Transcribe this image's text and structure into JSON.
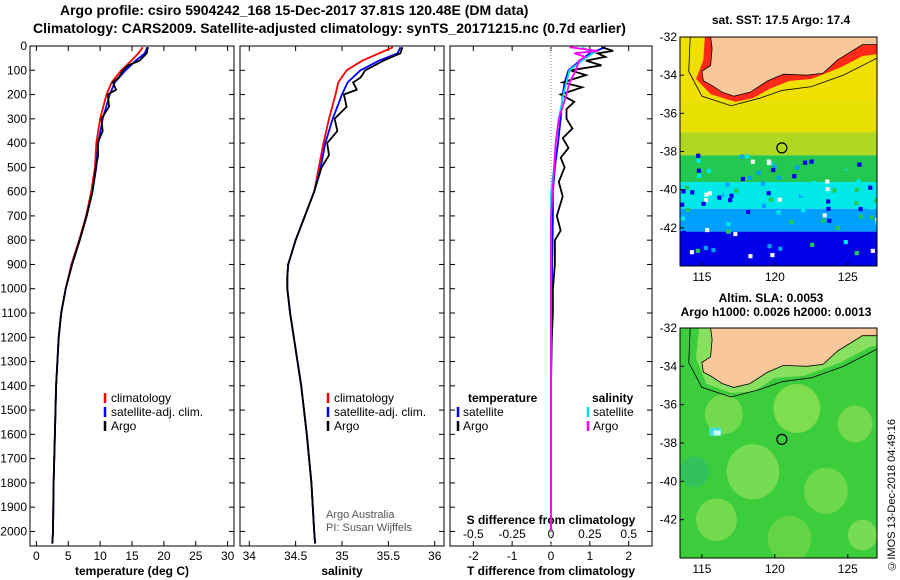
{
  "header": {
    "line1": "Argo profile: csiro 5904242_168 15-Dec-2017 37.81S 120.48E (DM data)",
    "line2": "Climatology: CARS2009. Satellite-adjusted climatology: synTS_20171215.nc (0.7d earlier)"
  },
  "colors": {
    "climatology": "#ff0000",
    "satellite": "#0000ff",
    "argo": "#000000",
    "sat_salinity": "#00e5e5",
    "argo_salinity": "#ff00ff"
  },
  "chart_data": [
    {
      "type": "line",
      "xlabel": "temperature (deg C)",
      "ylabel": "",
      "xlim": [
        -1,
        31
      ],
      "ylim": [
        2060,
        0
      ],
      "xticks": [
        "0",
        "5",
        "10",
        "15",
        "20",
        "25",
        "30"
      ],
      "yticks": [
        "0",
        "100",
        "200",
        "300",
        "400",
        "500",
        "600",
        "700",
        "800",
        "900",
        "1000",
        "1100",
        "1200",
        "1300",
        "1400",
        "1500",
        "1600",
        "1700",
        "1800",
        "1900",
        "2000"
      ],
      "legend": [
        "climatology",
        "satellite-adj. clim.",
        "Argo"
      ],
      "series": [
        {
          "name": "climatology",
          "color": "#ff0000",
          "depth": [
            5,
            30,
            60,
            100,
            150,
            200,
            300,
            400,
            500,
            600,
            700,
            800,
            900,
            1000,
            1100,
            1200,
            1400,
            1600,
            1800,
            2000,
            2050
          ],
          "values": [
            16.7,
            16.0,
            14.9,
            13.3,
            11.8,
            11.0,
            10.0,
            9.4,
            9.2,
            8.6,
            7.8,
            6.7,
            5.5,
            4.6,
            3.9,
            3.5,
            3.1,
            2.9,
            2.7,
            2.6,
            2.5
          ]
        },
        {
          "name": "satellite-adj. clim.",
          "color": "#0000ff",
          "depth": [
            5,
            30,
            60,
            100,
            150,
            200,
            300,
            400,
            500,
            600,
            700,
            800,
            900,
            1000,
            1100,
            1200,
            1400,
            1600,
            1800,
            2000,
            2050
          ],
          "values": [
            17.4,
            17.0,
            15.6,
            14.0,
            12.3,
            11.5,
            10.4,
            9.7,
            9.4,
            8.8,
            7.9,
            6.8,
            5.6,
            4.6,
            3.9,
            3.5,
            3.1,
            2.9,
            2.7,
            2.6,
            2.5
          ]
        },
        {
          "name": "Argo",
          "color": "#000000",
          "depth": [
            5,
            30,
            60,
            80,
            100,
            130,
            150,
            180,
            200,
            250,
            300,
            350,
            400,
            450,
            500,
            600,
            700,
            800,
            900,
            1000,
            1100,
            1200,
            1400,
            1600,
            1800,
            2000,
            2050
          ],
          "values": [
            17.5,
            17.3,
            16.2,
            14.4,
            13.6,
            12.9,
            12.0,
            12.5,
            11.2,
            11.4,
            10.2,
            10.4,
            9.6,
            9.7,
            9.3,
            8.8,
            7.9,
            6.8,
            5.6,
            4.6,
            3.9,
            3.5,
            3.1,
            2.9,
            2.7,
            2.6,
            2.5
          ]
        }
      ]
    },
    {
      "type": "line",
      "xlabel": "salinity",
      "xlim": [
        33.9,
        36.1
      ],
      "ylim": [
        2060,
        0
      ],
      "xticks": [
        "34",
        "34.5",
        "35",
        "35.5",
        "36"
      ],
      "legend": [
        "climatology",
        "satellite-adj. clim.",
        "Argo"
      ],
      "annotations": [
        "Argo Australia",
        "PI: Susan Wijffels"
      ],
      "series": [
        {
          "name": "climatology",
          "color": "#ff0000",
          "depth": [
            5,
            30,
            60,
            100,
            150,
            200,
            300,
            400,
            500,
            600,
            700,
            800,
            900,
            950,
            1000,
            1100,
            1200,
            1300,
            1400,
            1600,
            1800,
            2000,
            2050
          ],
          "values": [
            35.55,
            35.4,
            35.22,
            35.05,
            34.96,
            34.93,
            34.86,
            34.8,
            34.75,
            34.7,
            34.6,
            34.5,
            34.42,
            34.41,
            34.41,
            34.44,
            34.48,
            34.52,
            34.56,
            34.62,
            34.67,
            34.7,
            34.71
          ]
        },
        {
          "name": "satellite-adj. clim.",
          "color": "#0000ff",
          "depth": [
            5,
            30,
            60,
            100,
            150,
            200,
            300,
            400,
            500,
            600,
            700,
            800,
            900,
            950,
            1000,
            1100,
            1200,
            1300,
            1400,
            1600,
            1800,
            2000,
            2050
          ],
          "values": [
            35.63,
            35.6,
            35.4,
            35.2,
            35.06,
            35.0,
            34.9,
            34.82,
            34.77,
            34.7,
            34.6,
            34.5,
            34.42,
            34.41,
            34.41,
            34.44,
            34.48,
            34.52,
            34.56,
            34.62,
            34.67,
            34.7,
            34.71
          ]
        },
        {
          "name": "Argo",
          "color": "#000000",
          "depth": [
            5,
            30,
            60,
            100,
            130,
            150,
            180,
            200,
            250,
            300,
            350,
            400,
            450,
            500,
            600,
            700,
            800,
            900,
            950,
            1000,
            1100,
            1200,
            1300,
            1400,
            1600,
            1800,
            2000,
            2050
          ],
          "values": [
            35.65,
            35.63,
            35.45,
            35.25,
            35.2,
            35.12,
            35.16,
            35.02,
            35.05,
            34.92,
            34.95,
            34.84,
            34.86,
            34.78,
            34.7,
            34.6,
            34.5,
            34.42,
            34.41,
            34.41,
            34.44,
            34.48,
            34.52,
            34.56,
            34.62,
            34.67,
            34.7,
            34.71
          ]
        }
      ]
    },
    {
      "type": "line",
      "xlabel": "T difference from climatology",
      "x2label": "S difference from climatology",
      "xlim": [
        -2.6,
        2.6
      ],
      "ylim": [
        2060,
        0
      ],
      "xticks": [
        "-2",
        "-1",
        "0",
        "1",
        "2"
      ],
      "x2ticks": [
        "-0.5",
        "-0.25",
        "0",
        "0.25",
        "0.5"
      ],
      "legend_left_title": "temperature",
      "legend_right_title": "salinity",
      "legend": [
        "satellite",
        "Argo",
        "satellite",
        "Argo"
      ],
      "series": [
        {
          "name": "satellite",
          "group": "temperature",
          "color": "#0000ff",
          "depth": [
            5,
            30,
            60,
            100,
            150,
            200,
            300,
            400,
            500,
            600,
            700,
            800,
            1000,
            1200,
            1500,
            2000
          ],
          "values": [
            1.4,
            1.0,
            0.75,
            0.45,
            0.35,
            0.3,
            0.25,
            0.18,
            0.1,
            0.05,
            0.05,
            0.04,
            0.02,
            0.0,
            0.0,
            0.0
          ]
        },
        {
          "name": "Argo",
          "group": "temperature",
          "color": "#000000",
          "depth": [
            5,
            20,
            30,
            45,
            60,
            80,
            100,
            120,
            150,
            170,
            200,
            230,
            260,
            300,
            340,
            380,
            420,
            460,
            500,
            560,
            620,
            700,
            760,
            800,
            900,
            1000,
            1100,
            1200,
            1400,
            1600,
            1800,
            2000
          ],
          "values": [
            1.3,
            1.6,
            1.2,
            1.4,
            0.9,
            1.3,
            0.5,
            0.9,
            0.3,
            0.8,
            0.25,
            0.6,
            0.4,
            0.4,
            0.55,
            0.3,
            0.45,
            0.25,
            0.35,
            0.2,
            0.3,
            0.15,
            0.25,
            0.1,
            0.1,
            0.05,
            0.05,
            0.02,
            0.0,
            0.0,
            0.0,
            0.0
          ]
        },
        {
          "name": "satellite",
          "group": "salinity",
          "color": "#00e5e5",
          "depth": [
            5,
            30,
            60,
            100,
            150,
            200,
            300,
            400,
            500,
            600,
            700,
            800,
            1000,
            1200,
            1500,
            2000
          ],
          "values": [
            0.2,
            0.27,
            0.2,
            0.12,
            0.1,
            0.08,
            0.05,
            0.03,
            0.02,
            0.0,
            0.0,
            0.0,
            0.0,
            0.0,
            0.0,
            0.0
          ]
        },
        {
          "name": "Argo",
          "group": "salinity",
          "color": "#ff00ff",
          "depth": [
            5,
            20,
            30,
            45,
            60,
            100,
            150,
            200,
            300,
            400,
            500,
            600,
            700,
            800,
            1000,
            1200,
            1500,
            2000
          ],
          "values": [
            0.12,
            0.3,
            0.15,
            0.22,
            0.18,
            0.16,
            0.12,
            0.1,
            0.05,
            0.03,
            0.02,
            0.01,
            0.0,
            0.0,
            0.0,
            0.0,
            0.0,
            0.0
          ]
        }
      ]
    },
    {
      "type": "heatmap",
      "title": "sat. SST: 17.5 Argo: 17.4",
      "xlim": [
        113.5,
        127
      ],
      "ylim": [
        -44,
        -32
      ],
      "xticks": [
        "115",
        "120",
        "125"
      ],
      "yticks": [
        "-32",
        "-34",
        "-36",
        "-38",
        "-40",
        "-42"
      ],
      "marker": {
        "lon": 120.48,
        "lat": -37.81
      },
      "bands": [
        {
          "lat": [
            -32,
            -35.4
          ],
          "color": "#f0e000"
        },
        {
          "lat": [
            -35.4,
            -37.0
          ],
          "color": "#e8e000"
        },
        {
          "lat": [
            -37.0,
            -38.2
          ],
          "color": "#b0d820"
        },
        {
          "lat": [
            -38.2,
            -39.6
          ],
          "color": "#22c850"
        },
        {
          "lat": [
            -39.6,
            -41.0
          ],
          "color": "#00e8e8"
        },
        {
          "lat": [
            -41.0,
            -42.2
          ],
          "color": "#00a0ff"
        },
        {
          "lat": [
            -42.2,
            -44
          ],
          "color": "#0000e8"
        }
      ]
    },
    {
      "type": "heatmap",
      "title": "Altim. SLA: 0.0053",
      "subtitle": "Argo h1000: 0.0026 h2000: 0.0013",
      "xlim": [
        113.5,
        127
      ],
      "ylim": [
        -44,
        -32
      ],
      "xticks": [
        "115",
        "120",
        "125"
      ],
      "yticks": [
        "-32",
        "-34",
        "-36",
        "-38",
        "-40",
        "-42"
      ],
      "marker": {
        "lon": 120.48,
        "lat": -37.81
      }
    }
  ],
  "footer": {
    "credit": "©IMOS 13-Dec-2018 04:49:16"
  }
}
